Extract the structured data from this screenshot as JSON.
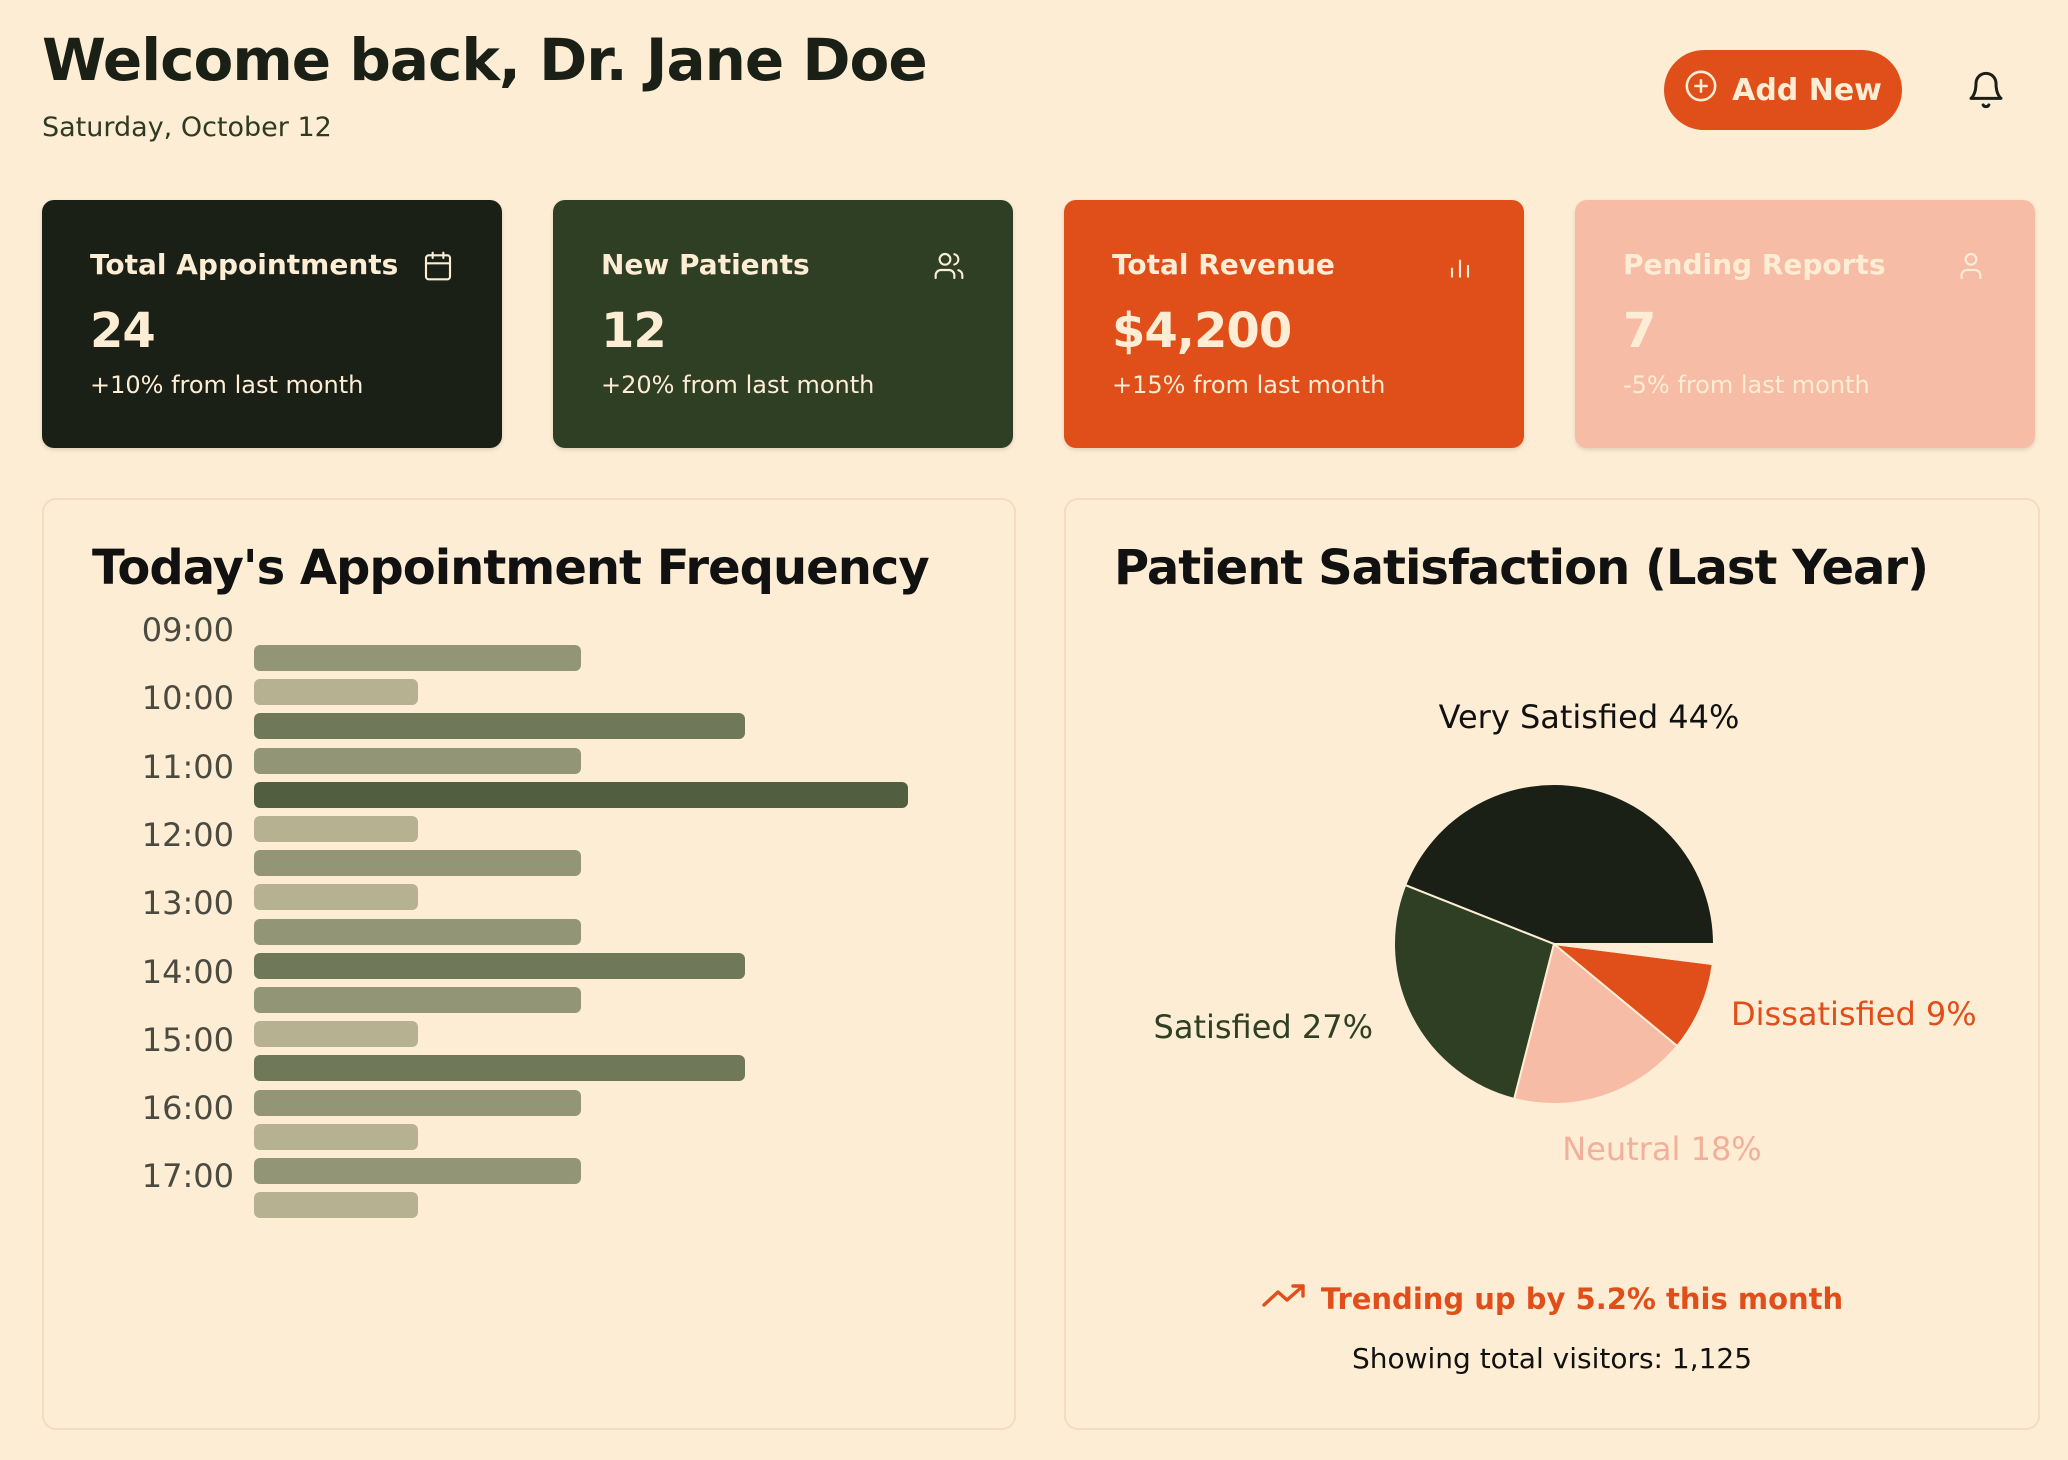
{
  "header": {
    "title": "Welcome back, Dr. Jane Doe",
    "date": "Saturday, October 12",
    "add_button_label": "Add New"
  },
  "stats": [
    {
      "title": "Total Appointments",
      "value": "24",
      "change": "+10% from last month",
      "icon": "calendar-icon",
      "bg": "#1a2016",
      "fg": "#fdedd4"
    },
    {
      "title": "New Patients",
      "value": "12",
      "change": "+20% from last month",
      "icon": "users-icon",
      "bg": "#2e3f24",
      "fg": "#fdedd4"
    },
    {
      "title": "Total Revenue",
      "value": "$4,200",
      "change": "+15% from last month",
      "icon": "bar-chart-icon",
      "bg": "#e04e1a",
      "fg": "#fdedd4"
    },
    {
      "title": "Pending Reports",
      "value": "7",
      "change": "-5% from last month",
      "icon": "user-icon",
      "bg": "#f6bca6",
      "fg": "#fdedd4"
    }
  ],
  "frequency": {
    "title": "Today's Appointment Frequency"
  },
  "satisfaction": {
    "title": "Patient Satisfaction (Last Year)",
    "trend_text": "Trending up by 5.2% this month",
    "visitors_text": "Showing total visitors: 1,125"
  },
  "colors": {
    "background": "#fdedd4",
    "accent": "#e04e1a",
    "dark": "#1a2016",
    "forest": "#2e3f24",
    "blush": "#f6bca6"
  },
  "chart_data": [
    {
      "type": "bar",
      "orientation": "horizontal",
      "tick_labels": [
        "09:00",
        "10:00",
        "11:00",
        "12:00",
        "13:00",
        "14:00",
        "15:00",
        "16:00",
        "17:00"
      ],
      "values": [
        2,
        1,
        3,
        2,
        4,
        1,
        2,
        1,
        2,
        3,
        2,
        1,
        3,
        2,
        1,
        2,
        1
      ],
      "max": 4,
      "level_colors": {
        "1": "#b6b291",
        "2": "#939676",
        "3": "#6f7858",
        "4": "#525e40"
      }
    },
    {
      "type": "pie",
      "slices": [
        {
          "label": "Very Satisfied",
          "value": 44,
          "display": "Very Satisfied 44%",
          "color": "#1a2016",
          "label_color": "#111111"
        },
        {
          "label": "Satisfied",
          "value": 27,
          "display": "Satisfied 27%",
          "color": "#2e3f24",
          "label_color": "#2e3f24"
        },
        {
          "label": "Neutral",
          "value": 18,
          "display": "Neutral 18%",
          "color": "#f6bca6",
          "label_color": "#f2b09a"
        },
        {
          "label": "Dissatisfied",
          "value": 9,
          "display": "Dissatisfied 9%",
          "color": "#e04e1a",
          "label_color": "#e04e1a"
        },
        {
          "label": "",
          "value": 2,
          "display": "",
          "color": "#fdedd4",
          "label_color": "#fdedd4"
        }
      ]
    }
  ]
}
